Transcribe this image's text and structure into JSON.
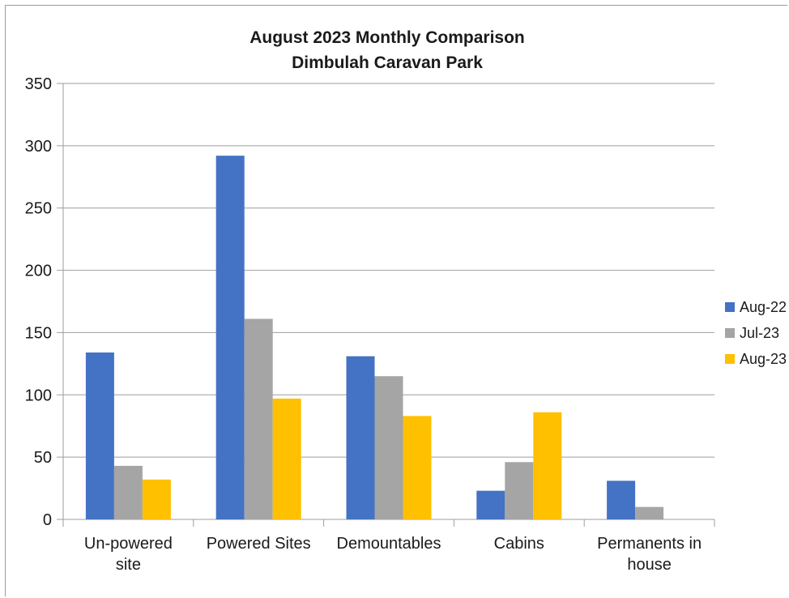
{
  "chart_data": {
    "type": "bar",
    "title": [
      "August  2023 Monthly Comparison",
      "Dimbulah Caravan Park"
    ],
    "categories": [
      [
        "Un-powered",
        "site"
      ],
      [
        "Powered Sites"
      ],
      [
        "Demountables"
      ],
      [
        "Cabins"
      ],
      [
        "Permanents in",
        "house"
      ]
    ],
    "series": [
      {
        "name": "Aug-22",
        "color": "#4472C4",
        "values": [
          134,
          292,
          131,
          23,
          31
        ]
      },
      {
        "name": "Jul-23",
        "color": "#A5A5A5",
        "values": [
          43,
          161,
          115,
          46,
          10
        ]
      },
      {
        "name": "Aug-23",
        "color": "#FFC000",
        "values": [
          32,
          97,
          83,
          86,
          0
        ]
      }
    ],
    "ylim": [
      0,
      350
    ],
    "yticks": [
      0,
      50,
      100,
      150,
      200,
      250,
      300,
      350
    ],
    "grid": true,
    "legend": "right",
    "xlabel": "",
    "ylabel": ""
  }
}
